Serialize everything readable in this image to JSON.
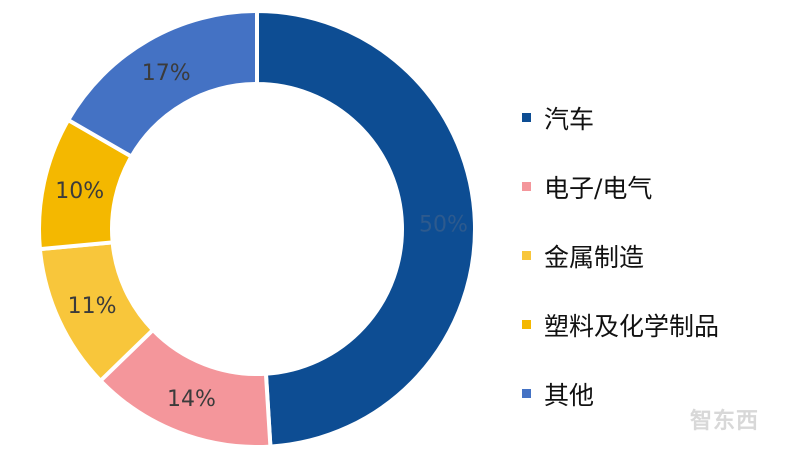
{
  "chart_data": {
    "type": "pie",
    "donut": true,
    "start": "top, clockwise",
    "slices": [
      {
        "name": "汽车",
        "value": 50,
        "label": "50%",
        "color": "#0D4D93"
      },
      {
        "name": "电子/电气",
        "value": 14,
        "label": "14%",
        "color": "#F4969B"
      },
      {
        "name": "金属制造",
        "value": 11,
        "label": "11%",
        "color": "#F8C63B"
      },
      {
        "name": "塑料及化学制品",
        "value": 10,
        "label": "10%",
        "color": "#F4B800"
      },
      {
        "name": "其他",
        "value": 17,
        "label": "17%",
        "color": "#4472C4"
      }
    ],
    "legend_position": "right"
  },
  "watermark": "智东西"
}
